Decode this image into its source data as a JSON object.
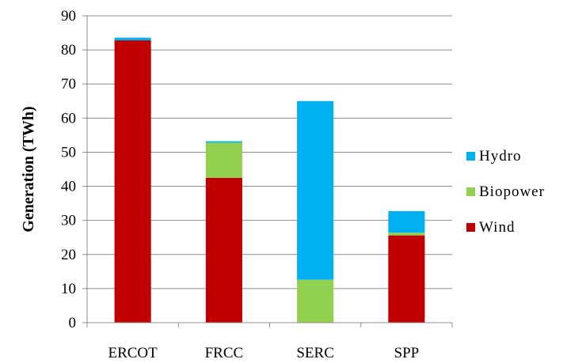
{
  "chart_data": {
    "type": "bar",
    "stacked": true,
    "title": "",
    "xlabel": "",
    "ylabel": "Generation (TWh)",
    "ylim": [
      0,
      90
    ],
    "yticks": [
      "0",
      "10",
      "20",
      "30",
      "40",
      "50",
      "60",
      "70",
      "80",
      "90"
    ],
    "grid": true,
    "legend_position": "right",
    "categories": [
      "ERCOT",
      "FRCC",
      "SERC",
      "SPP"
    ],
    "series": [
      {
        "name": "Wind",
        "color": "#C00000",
        "values": [
          82.8,
          42.5,
          0,
          25.6
        ]
      },
      {
        "name": "Biopower",
        "color": "#92D050",
        "values": [
          0,
          10.3,
          12.6,
          0.8
        ]
      },
      {
        "name": "Hydro",
        "color": "#00B0F0",
        "values": [
          0.8,
          0.4,
          52.4,
          6.3
        ]
      }
    ]
  }
}
